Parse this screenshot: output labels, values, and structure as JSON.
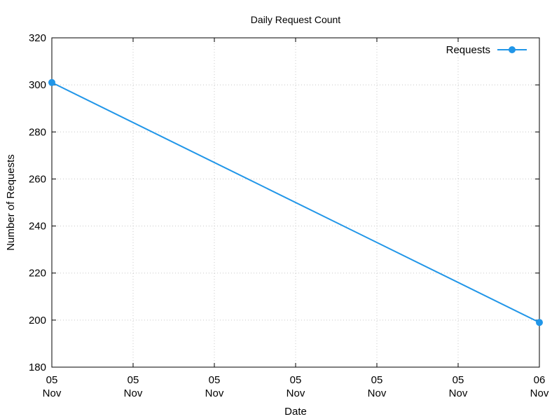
{
  "chart_data": {
    "type": "line",
    "title": "Daily Request Count",
    "xlabel": "Date",
    "ylabel": "Number of Requests",
    "x_ticks": [
      {
        "day": "05",
        "month": "Nov"
      },
      {
        "day": "05",
        "month": "Nov"
      },
      {
        "day": "05",
        "month": "Nov"
      },
      {
        "day": "05",
        "month": "Nov"
      },
      {
        "day": "05",
        "month": "Nov"
      },
      {
        "day": "05",
        "month": "Nov"
      },
      {
        "day": "06",
        "month": "Nov"
      }
    ],
    "x_range": [
      "05 Nov",
      "06 Nov"
    ],
    "ylim": [
      180,
      320
    ],
    "y_ticks": [
      180,
      200,
      220,
      240,
      260,
      280,
      300,
      320
    ],
    "series": [
      {
        "name": "Requests",
        "color": "#2196e8",
        "x": [
          "05 Nov",
          "06 Nov"
        ],
        "values": [
          301,
          199
        ]
      }
    ],
    "legend": {
      "position": "top-right",
      "entries": [
        "Requests"
      ]
    },
    "grid": true
  }
}
